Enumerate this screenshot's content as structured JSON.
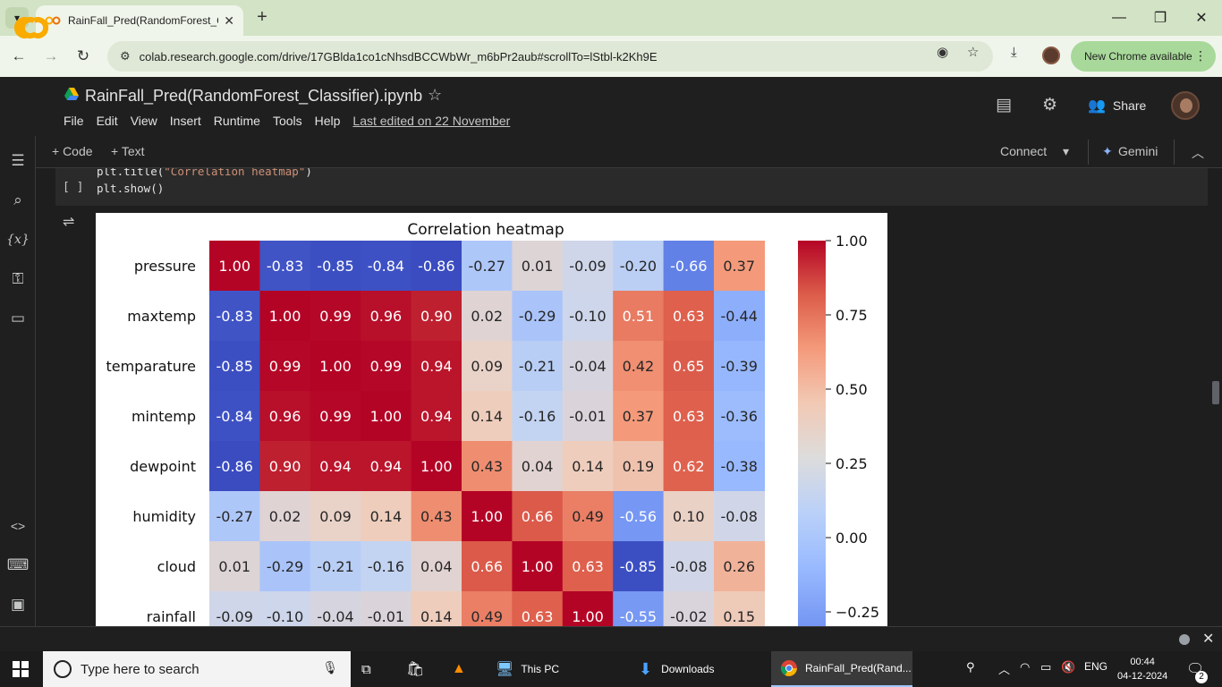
{
  "browser": {
    "tab_title": "RainFall_Pred(RandomForest_Cl",
    "url": "colab.research.google.com/drive/17GBlda1co1cNhsdBCCWbWr_m6bPr2aub#scrollTo=lStbl-k2Kh9E",
    "update_label": "New Chrome available"
  },
  "colab": {
    "notebook_title": "RainFall_Pred(RandomForest_Classifier).ipynb",
    "menu": [
      "File",
      "Edit",
      "View",
      "Insert",
      "Runtime",
      "Tools",
      "Help"
    ],
    "last_edited": "Last edited on 22 November",
    "share_label": "Share",
    "add_code": "+ Code",
    "add_text": "+ Text",
    "connect_label": "Connect",
    "gemini_label": "Gemini"
  },
  "cell": {
    "bracket": "[ ]",
    "line1_fn": "plt.title(",
    "line1_str": "\"Correlation heatmap\"",
    "line1_end": ")",
    "line2": "plt.show()"
  },
  "chart_data": {
    "type": "heatmap",
    "title": "Correlation heatmap",
    "rows": [
      "pressure",
      "maxtemp",
      "temparature",
      "mintemp",
      "dewpoint",
      "humidity",
      "cloud",
      "rainfall"
    ],
    "cols": 11,
    "values": [
      [
        1.0,
        -0.83,
        -0.85,
        -0.84,
        -0.86,
        -0.27,
        0.01,
        -0.09,
        -0.2,
        -0.66,
        0.37
      ],
      [
        -0.83,
        1.0,
        0.99,
        0.96,
        0.9,
        0.02,
        -0.29,
        -0.1,
        0.51,
        0.63,
        -0.44
      ],
      [
        -0.85,
        0.99,
        1.0,
        0.99,
        0.94,
        0.09,
        -0.21,
        -0.04,
        0.42,
        0.65,
        -0.39
      ],
      [
        -0.84,
        0.96,
        0.99,
        1.0,
        0.94,
        0.14,
        -0.16,
        -0.01,
        0.37,
        0.63,
        -0.36
      ],
      [
        -0.86,
        0.9,
        0.94,
        0.94,
        1.0,
        0.43,
        0.04,
        0.14,
        0.19,
        0.62,
        -0.38
      ],
      [
        -0.27,
        0.02,
        0.09,
        0.14,
        0.43,
        1.0,
        0.66,
        0.49,
        -0.56,
        0.1,
        -0.08
      ],
      [
        0.01,
        -0.29,
        -0.21,
        -0.16,
        0.04,
        0.66,
        1.0,
        0.63,
        -0.85,
        -0.08,
        0.26
      ],
      [
        -0.09,
        -0.1,
        -0.04,
        -0.01,
        0.14,
        0.49,
        0.63,
        1.0,
        -0.55,
        -0.02,
        0.15
      ]
    ],
    "colorbar_ticks": [
      "1.00",
      "0.75",
      "0.50",
      "0.25",
      "0.00",
      "−0.25"
    ],
    "colormap": "coolwarm",
    "vmin": -0.86,
    "vmax": 1.0
  },
  "taskbar": {
    "search_placeholder": "Type here to search",
    "items": [
      "This PC",
      "Downloads",
      "RainFall_Pred(Rand..."
    ],
    "lang": "ENG",
    "time": "00:44",
    "date": "04-12-2024",
    "notif_count": "2"
  }
}
